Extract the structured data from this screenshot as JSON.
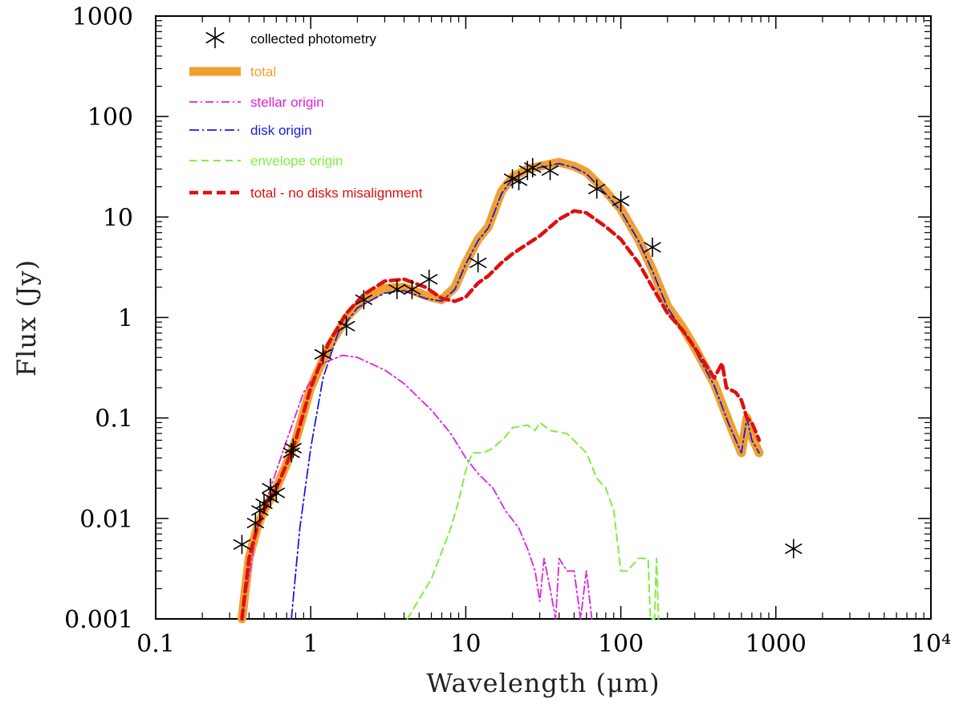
{
  "chart_data": {
    "type": "line",
    "x_scale": "log",
    "y_scale": "log",
    "xlim": [
      0.1,
      10000
    ],
    "ylim": [
      0.001,
      1000
    ],
    "xlabel": "Wavelength (μm)",
    "ylabel": "Flux (Jy)",
    "x_ticks": [
      {
        "value": 0.1,
        "label": "0.1"
      },
      {
        "value": 1,
        "label": "1"
      },
      {
        "value": 10,
        "label": "10"
      },
      {
        "value": 100,
        "label": "100"
      },
      {
        "value": 1000,
        "label": "1000"
      },
      {
        "value": 10000,
        "label": "10⁴"
      }
    ],
    "y_ticks": [
      {
        "value": 0.001,
        "label": "0.001"
      },
      {
        "value": 0.01,
        "label": "0.01"
      },
      {
        "value": 0.1,
        "label": "0.1"
      },
      {
        "value": 1,
        "label": "1"
      },
      {
        "value": 10,
        "label": "10"
      },
      {
        "value": 100,
        "label": "100"
      },
      {
        "value": 1000,
        "label": "1000"
      }
    ],
    "legend": {
      "position": "top-left",
      "entries": [
        {
          "key": "photometry",
          "label": "collected photometry",
          "color": "#000000",
          "style": "marker"
        },
        {
          "key": "total",
          "label": "total",
          "color": "#f0a030",
          "style": "thick-solid"
        },
        {
          "key": "stellar",
          "label": "stellar origin",
          "color": "#e020e0",
          "style": "dash-dot"
        },
        {
          "key": "disk",
          "label": "disk origin",
          "color": "#1a1ae0",
          "style": "dash-dot"
        },
        {
          "key": "envelope",
          "label": "envelope origin",
          "color": "#80ee40",
          "style": "dashed"
        },
        {
          "key": "nomisalign",
          "label": "total - no disks misalignment",
          "color": "#dd1010",
          "style": "thick-dashed"
        }
      ]
    },
    "series": [
      {
        "key": "total",
        "name": "total",
        "points": [
          [
            0.36,
            0.001
          ],
          [
            0.4,
            0.004
          ],
          [
            0.45,
            0.008
          ],
          [
            0.5,
            0.012
          ],
          [
            0.6,
            0.02
          ],
          [
            0.7,
            0.035
          ],
          [
            0.8,
            0.06
          ],
          [
            1.0,
            0.2
          ],
          [
            1.3,
            0.5
          ],
          [
            1.7,
            1.0
          ],
          [
            2.2,
            1.5
          ],
          [
            3.0,
            1.95
          ],
          [
            4.0,
            2.0
          ],
          [
            5.5,
            1.65
          ],
          [
            7.0,
            1.5
          ],
          [
            8.5,
            2.0
          ],
          [
            10,
            3.5
          ],
          [
            12,
            6.0
          ],
          [
            14,
            8.0
          ],
          [
            17,
            18
          ],
          [
            20,
            25
          ],
          [
            25,
            30
          ],
          [
            30,
            32
          ],
          [
            40,
            35
          ],
          [
            50,
            32
          ],
          [
            60,
            28
          ],
          [
            80,
            18
          ],
          [
            100,
            12
          ],
          [
            130,
            6
          ],
          [
            160,
            3
          ],
          [
            200,
            1.3
          ],
          [
            250,
            0.8
          ],
          [
            300,
            0.5
          ],
          [
            400,
            0.22
          ],
          [
            500,
            0.09
          ],
          [
            600,
            0.045
          ],
          [
            650,
            0.1
          ],
          [
            700,
            0.065
          ],
          [
            780,
            0.045
          ]
        ]
      },
      {
        "key": "disk",
        "name": "disk origin",
        "points": [
          [
            0.75,
            0.001
          ],
          [
            0.85,
            0.008
          ],
          [
            1.0,
            0.05
          ],
          [
            1.2,
            0.25
          ],
          [
            1.5,
            0.7
          ],
          [
            2.0,
            1.25
          ],
          [
            3.0,
            1.75
          ],
          [
            4.0,
            1.85
          ],
          [
            5.5,
            1.55
          ],
          [
            7.0,
            1.45
          ],
          [
            8.5,
            1.9
          ],
          [
            10,
            3.4
          ],
          [
            12,
            5.8
          ],
          [
            14,
            7.8
          ],
          [
            17,
            17
          ],
          [
            20,
            24
          ],
          [
            25,
            29
          ],
          [
            30,
            31
          ],
          [
            40,
            34
          ],
          [
            50,
            31
          ],
          [
            60,
            27
          ],
          [
            80,
            17
          ],
          [
            100,
            11.5
          ],
          [
            130,
            5.8
          ],
          [
            160,
            2.9
          ],
          [
            200,
            1.25
          ],
          [
            250,
            0.75
          ],
          [
            300,
            0.48
          ],
          [
            400,
            0.21
          ],
          [
            500,
            0.085
          ],
          [
            600,
            0.045
          ],
          [
            650,
            0.1
          ],
          [
            700,
            0.06
          ],
          [
            780,
            0.045
          ]
        ]
      },
      {
        "key": "stellar",
        "name": "stellar origin",
        "points": [
          [
            0.36,
            0.001
          ],
          [
            0.45,
            0.008
          ],
          [
            0.55,
            0.02
          ],
          [
            0.7,
            0.06
          ],
          [
            0.9,
            0.18
          ],
          [
            1.2,
            0.35
          ],
          [
            1.6,
            0.42
          ],
          [
            2.0,
            0.4
          ],
          [
            3.0,
            0.3
          ],
          [
            4.0,
            0.22
          ],
          [
            6.0,
            0.12
          ],
          [
            8.0,
            0.07
          ],
          [
            10,
            0.04
          ],
          [
            12,
            0.028
          ],
          [
            15,
            0.02
          ],
          [
            18,
            0.012
          ],
          [
            22,
            0.008
          ],
          [
            25,
            0.005
          ],
          [
            28,
            0.003
          ],
          [
            30,
            0.0015
          ],
          [
            32,
            0.004
          ],
          [
            35,
            0.002
          ],
          [
            38,
            0.001
          ],
          [
            40,
            0.004
          ],
          [
            45,
            0.003
          ],
          [
            50,
            0.003
          ],
          [
            55,
            0.001
          ],
          [
            60,
            0.003
          ],
          [
            65,
            0.001
          ]
        ]
      },
      {
        "key": "envelope",
        "name": "envelope origin",
        "points": [
          [
            4.2,
            0.001
          ],
          [
            6.0,
            0.0025
          ],
          [
            8.0,
            0.008
          ],
          [
            9.0,
            0.015
          ],
          [
            10,
            0.03
          ],
          [
            11,
            0.045
          ],
          [
            13,
            0.045
          ],
          [
            15,
            0.05
          ],
          [
            18,
            0.065
          ],
          [
            20,
            0.08
          ],
          [
            25,
            0.085
          ],
          [
            28,
            0.075
          ],
          [
            30,
            0.09
          ],
          [
            35,
            0.075
          ],
          [
            45,
            0.07
          ],
          [
            60,
            0.045
          ],
          [
            70,
            0.025
          ],
          [
            80,
            0.02
          ],
          [
            90,
            0.012
          ],
          [
            100,
            0.003
          ],
          [
            110,
            0.003
          ],
          [
            130,
            0.004
          ],
          [
            150,
            0.004
          ],
          [
            155,
            0.001
          ],
          [
            165,
            0.001
          ],
          [
            170,
            0.004
          ],
          [
            175,
            0.001
          ]
        ]
      },
      {
        "key": "nomisalign",
        "name": "total - no disks misalignment",
        "points": [
          [
            0.36,
            0.001
          ],
          [
            0.4,
            0.004
          ],
          [
            0.45,
            0.008
          ],
          [
            0.5,
            0.012
          ],
          [
            0.6,
            0.02
          ],
          [
            0.7,
            0.035
          ],
          [
            0.8,
            0.06
          ],
          [
            1.0,
            0.2
          ],
          [
            1.3,
            0.55
          ],
          [
            1.7,
            1.1
          ],
          [
            2.2,
            1.7
          ],
          [
            3.0,
            2.3
          ],
          [
            4.0,
            2.4
          ],
          [
            5.5,
            2.0
          ],
          [
            7.0,
            1.55
          ],
          [
            8.5,
            1.45
          ],
          [
            10,
            1.6
          ],
          [
            12,
            2.2
          ],
          [
            14,
            2.6
          ],
          [
            17,
            3.5
          ],
          [
            20,
            4.3
          ],
          [
            30,
            6.5
          ],
          [
            40,
            9.5
          ],
          [
            50,
            11.5
          ],
          [
            60,
            11.0
          ],
          [
            80,
            8.0
          ],
          [
            100,
            6.0
          ],
          [
            130,
            3.5
          ],
          [
            160,
            2.0
          ],
          [
            200,
            1.1
          ],
          [
            250,
            0.75
          ],
          [
            300,
            0.5
          ],
          [
            400,
            0.25
          ],
          [
            450,
            0.35
          ],
          [
            480,
            0.2
          ],
          [
            550,
            0.18
          ],
          [
            600,
            0.15
          ],
          [
            650,
            0.1
          ],
          [
            700,
            0.09
          ],
          [
            780,
            0.06
          ]
        ]
      }
    ],
    "photometry_points": [
      [
        0.36,
        0.0055
      ],
      [
        0.44,
        0.009
      ],
      [
        0.47,
        0.012
      ],
      [
        0.5,
        0.014
      ],
      [
        0.55,
        0.016
      ],
      [
        0.6,
        0.018
      ],
      [
        0.55,
        0.02
      ],
      [
        0.75,
        0.045
      ],
      [
        0.77,
        0.05
      ],
      [
        1.2,
        0.43
      ],
      [
        1.7,
        0.82
      ],
      [
        2.2,
        1.5
      ],
      [
        3.6,
        1.9
      ],
      [
        4.5,
        1.9
      ],
      [
        5.8,
        2.4
      ],
      [
        12,
        3.5
      ],
      [
        20,
        24
      ],
      [
        22,
        23
      ],
      [
        25,
        29
      ],
      [
        27,
        31
      ],
      [
        35,
        29
      ],
      [
        70,
        19
      ],
      [
        100,
        14.5
      ],
      [
        160,
        5.0
      ],
      [
        1300,
        0.005
      ]
    ]
  }
}
